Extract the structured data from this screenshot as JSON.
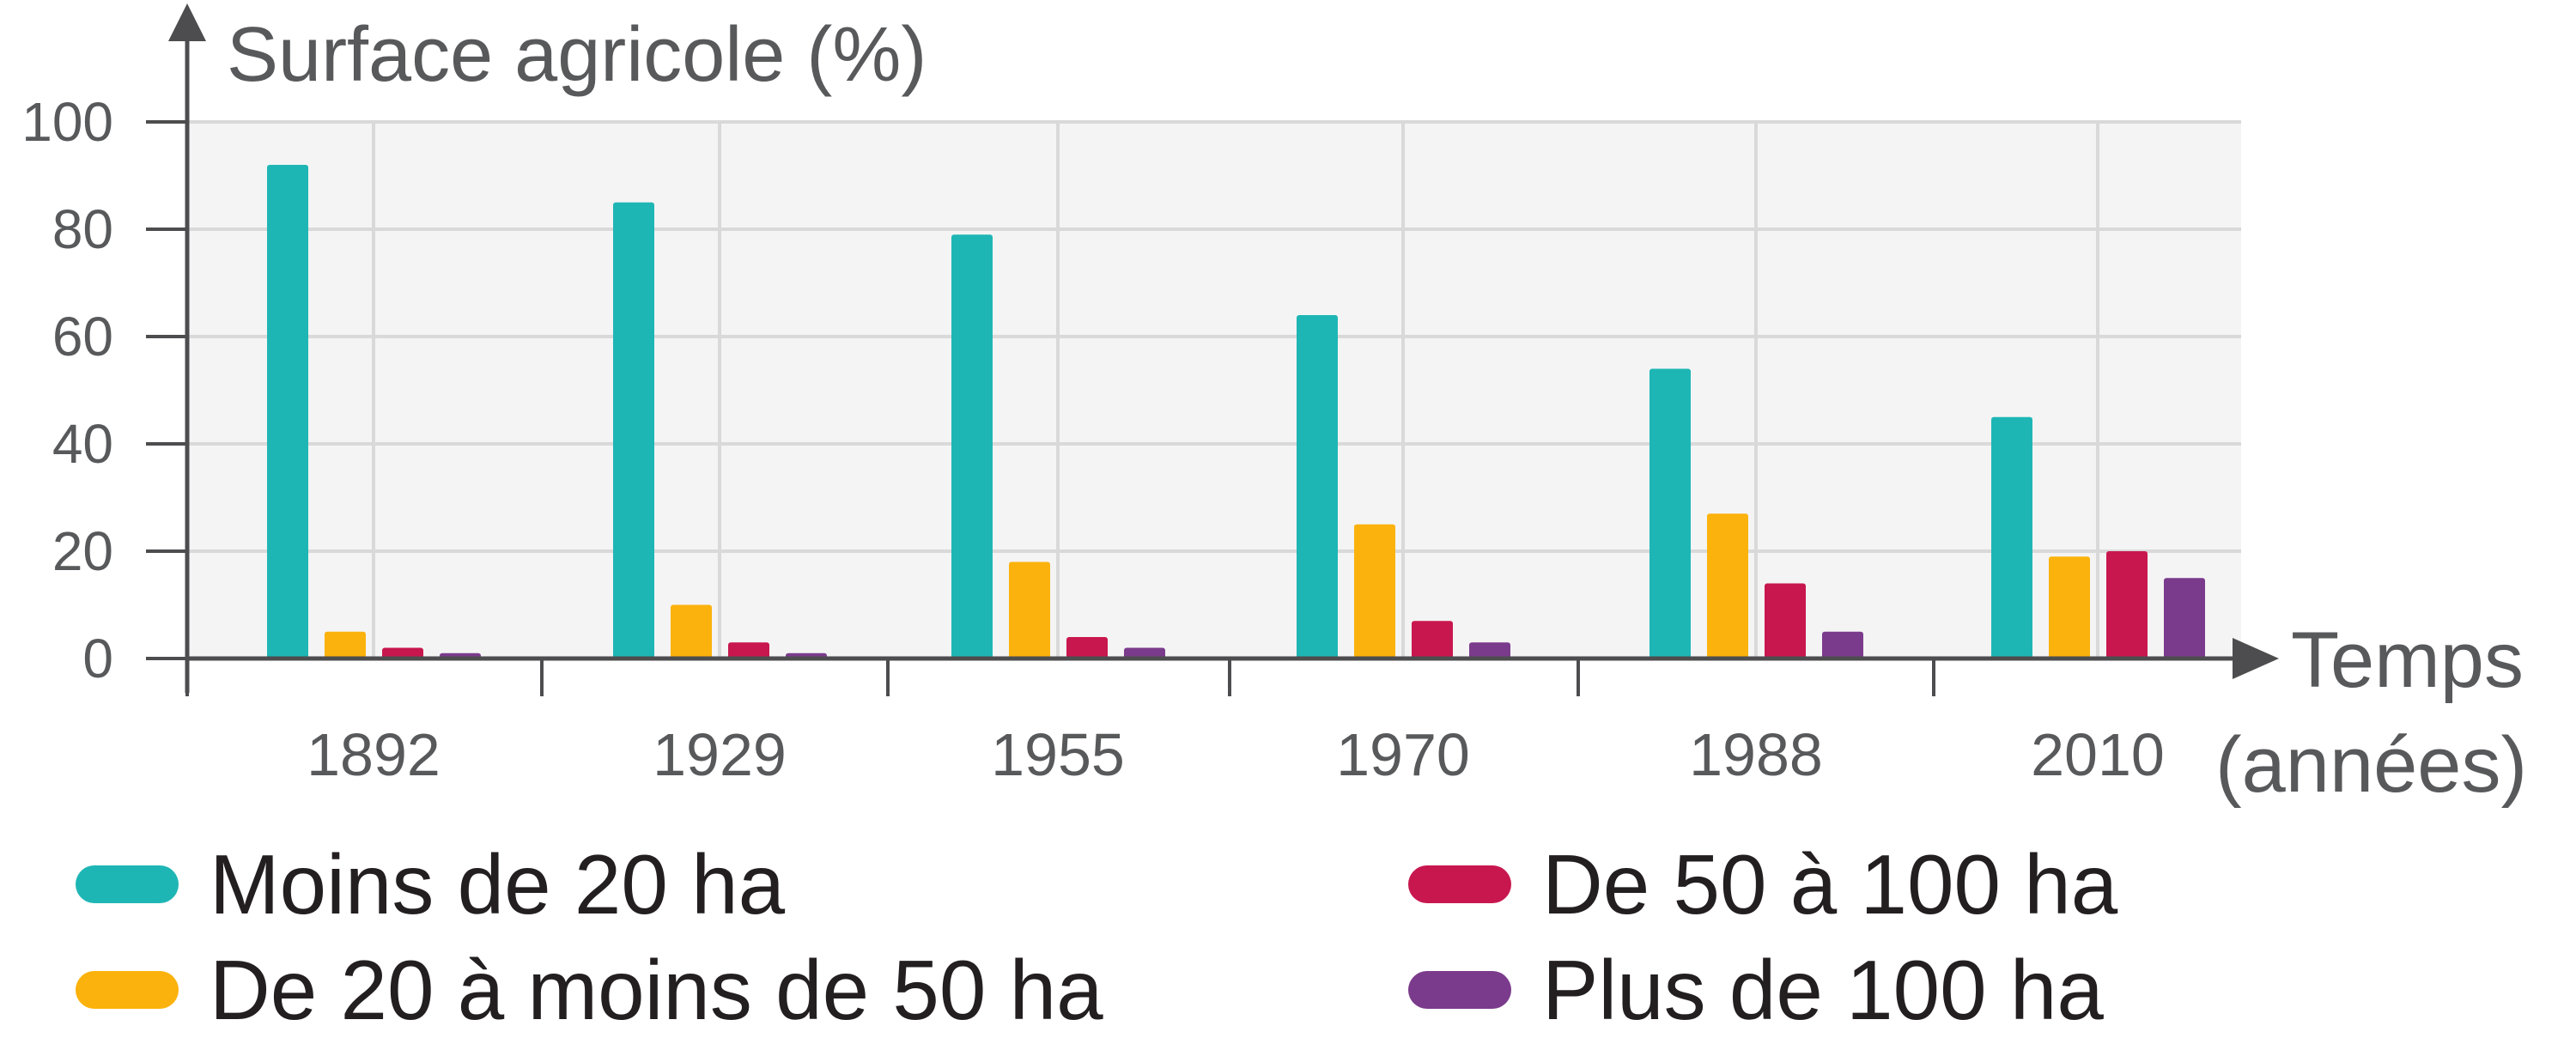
{
  "chart_data": {
    "type": "bar",
    "ylabel": "Surface agricole (%)",
    "xlabel_line1": "Temps",
    "xlabel_line2": "(années)",
    "categories": [
      "1892",
      "1929",
      "1955",
      "1970",
      "1988",
      "2010"
    ],
    "yticks": [
      "0",
      "20",
      "40",
      "60",
      "80",
      "100"
    ],
    "ylim": [
      0,
      100
    ],
    "grid": true,
    "legend_position": "bottom",
    "series": [
      {
        "name": "Moins de 20 ha",
        "color": "#1eb6b5",
        "values": [
          92,
          85,
          79,
          64,
          54,
          45
        ]
      },
      {
        "name": "De 20 à moins de 50 ha",
        "color": "#fbb20c",
        "values": [
          5,
          10,
          18,
          25,
          27,
          19
        ]
      },
      {
        "name": "De 50 à 100 ha",
        "color": "#c8174e",
        "values": [
          2,
          3,
          4,
          7,
          14,
          20
        ]
      },
      {
        "name": "Plus de 100 ha",
        "color": "#7b3b8c",
        "values": [
          1,
          1,
          2,
          3,
          5,
          15
        ]
      }
    ],
    "colors": {
      "plot_background": "#f4f4f4",
      "grid": "#d9d9d9",
      "axis": "#4d4d4f"
    }
  }
}
